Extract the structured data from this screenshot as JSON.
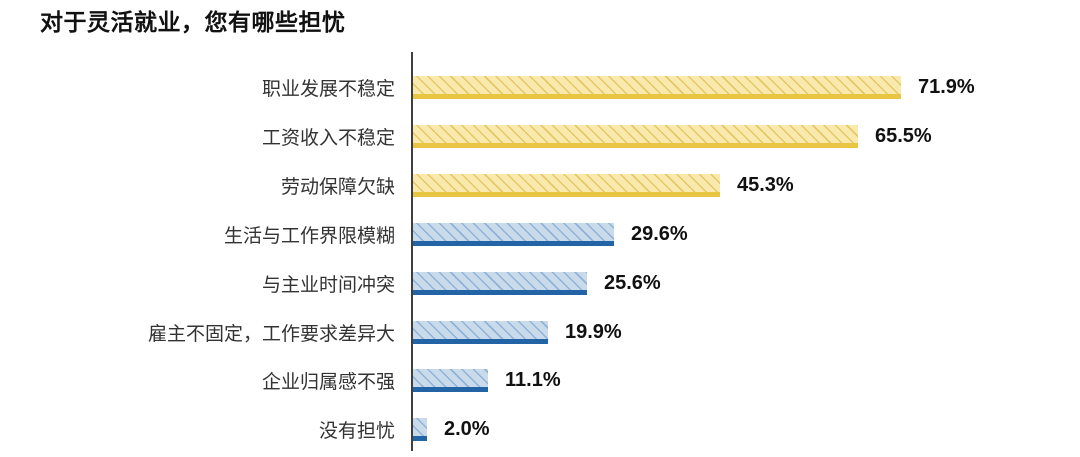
{
  "title": "对于灵活就业，您有哪些担忧",
  "chart_data": {
    "type": "bar",
    "orientation": "horizontal",
    "title": "对于灵活就业，您有哪些担忧",
    "categories": [
      "职业发展不稳定",
      "工资收入不稳定",
      "劳动保障欠缺",
      "生活与工作界限模糊",
      "与主业时间冲突",
      "雇主不固定，工作要求差异大",
      "企业归属感不强",
      "没有担忧"
    ],
    "values": [
      71.9,
      65.5,
      45.3,
      29.6,
      25.6,
      19.9,
      11.1,
      2.0
    ],
    "value_labels": [
      "71.9%",
      "65.5%",
      "45.3%",
      "29.6%",
      "25.6%",
      "19.9%",
      "11.1%",
      "2.0%"
    ],
    "groups": [
      "gold",
      "gold",
      "gold",
      "blue",
      "blue",
      "blue",
      "blue",
      "blue"
    ],
    "xlim": [
      0,
      80
    ],
    "grid": false,
    "legend": null,
    "bar_pattern": "diagonal-hatch",
    "styles": {
      "gold": {
        "fill": "#FAE9AD",
        "hatch": "#E4C868",
        "underline": "#E9C544"
      },
      "blue": {
        "fill": "#C9DAEB",
        "hatch": "#8FB2D6",
        "underline": "#2264A5"
      }
    },
    "axis_color": "#3F3F3F",
    "category_label_color": "#333333",
    "value_label_color": "#111111",
    "title_color": "#111111"
  }
}
